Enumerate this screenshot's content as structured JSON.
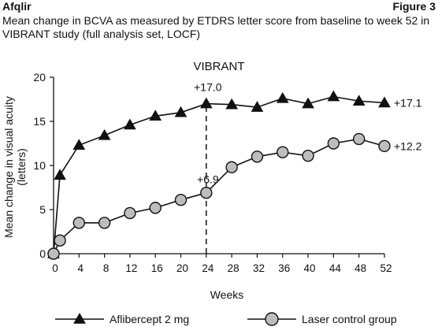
{
  "header": {
    "drug": "Afqlir",
    "figure": "Figure 3",
    "caption": "Mean change in BCVA as measured by ETDRS letter score from baseline to week 52 in VIBRANT study (full analysis set, LOCF)"
  },
  "chart_data": {
    "type": "line",
    "title": "VIBRANT",
    "xlabel": "Weeks",
    "ylabel": "Mean change in visual acuity (letters)",
    "xlim": [
      0,
      52
    ],
    "ylim": [
      0,
      20
    ],
    "xticks": [
      0,
      4,
      8,
      12,
      16,
      20,
      24,
      28,
      32,
      36,
      40,
      44,
      48,
      52
    ],
    "yticks": [
      0,
      5,
      10,
      15,
      20
    ],
    "grid": false,
    "legend_position": "bottom",
    "series": [
      {
        "name": "Aflibercept 2 mg",
        "marker": "triangle",
        "x": [
          0,
          1,
          4,
          8,
          12,
          16,
          20,
          24,
          28,
          32,
          36,
          40,
          44,
          48,
          52
        ],
        "y": [
          0,
          8.9,
          12.3,
          13.4,
          14.6,
          15.6,
          16.0,
          17.0,
          16.9,
          16.6,
          17.6,
          17.0,
          17.8,
          17.3,
          17.1
        ],
        "end_label": "+17.1"
      },
      {
        "name": "Laser control group",
        "marker": "circle",
        "x": [
          0,
          1,
          4,
          8,
          12,
          16,
          20,
          24,
          28,
          32,
          36,
          40,
          44,
          48,
          52
        ],
        "y": [
          0,
          1.5,
          3.5,
          3.5,
          4.6,
          5.2,
          6.1,
          6.9,
          9.8,
          11.0,
          11.5,
          11.1,
          12.5,
          13.0,
          12.2
        ],
        "end_label": "+12.2"
      }
    ],
    "annotations": [
      {
        "text": "+17.0",
        "x": 24,
        "y": 17.0,
        "series": 0
      },
      {
        "text": "+6.9",
        "x": 24,
        "y": 6.9,
        "series": 1
      }
    ],
    "reference_line": {
      "x": 24,
      "style": "dashed"
    }
  }
}
